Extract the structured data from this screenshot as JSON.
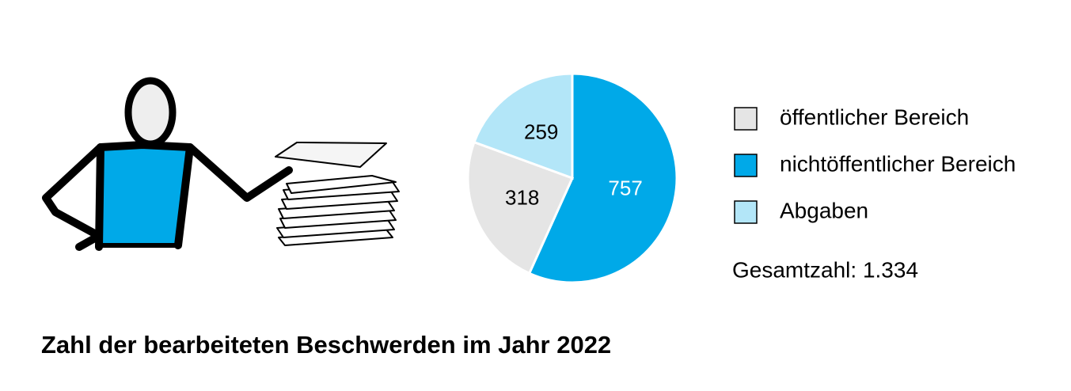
{
  "chart_data": {
    "type": "pie",
    "title": "Zahl der bearbeiteten Beschwerden im Jahr 2022",
    "categories": [
      "nichtöffentlicher Bereich",
      "öffentlicher Bereich",
      "Abgaben"
    ],
    "values": [
      757,
      318,
      259
    ],
    "colors": [
      "#00a9e8",
      "#e5e5e5",
      "#b3e6f8"
    ],
    "annotation": "Gesamtzahl: 1.334"
  }
}
